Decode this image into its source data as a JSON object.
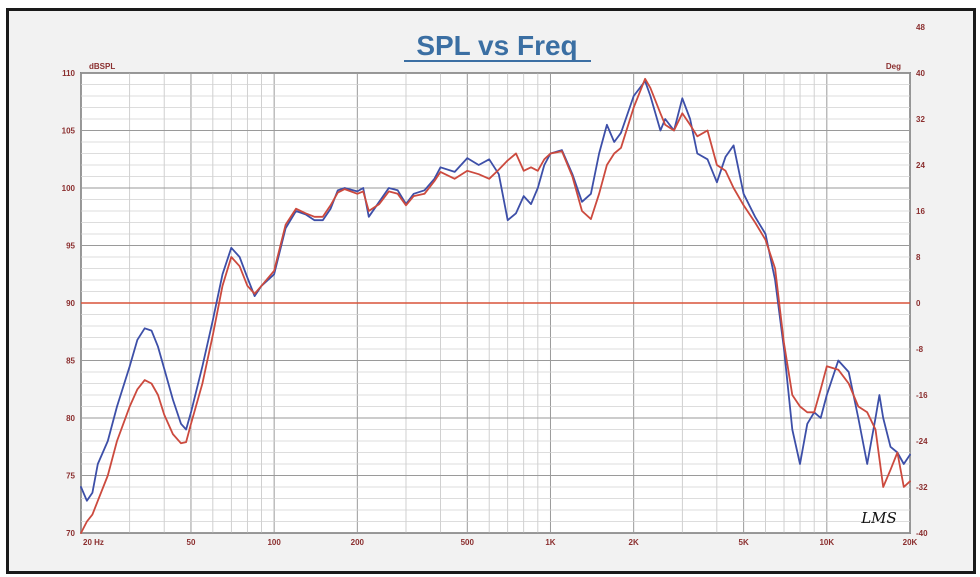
{
  "chart_data": {
    "type": "line",
    "title": "SPL vs Freq",
    "ylabel_left": "dBSPL",
    "ylabel_right": "Deg",
    "xscale": "log",
    "xlim": [
      20,
      20000
    ],
    "ylim": [
      70,
      110
    ],
    "y2lim": [
      -40,
      40
    ],
    "x_tick_labels": [
      {
        "value": 20,
        "label": "20 Hz"
      },
      {
        "value": 50,
        "label": "50"
      },
      {
        "value": 100,
        "label": "100"
      },
      {
        "value": 200,
        "label": "200"
      },
      {
        "value": 500,
        "label": "500"
      },
      {
        "value": 1000,
        "label": "1K"
      },
      {
        "value": 2000,
        "label": "2K"
      },
      {
        "value": 5000,
        "label": "5K"
      },
      {
        "value": 10000,
        "label": "10K"
      },
      {
        "value": 20000,
        "label": "20K"
      }
    ],
    "y_ticks": [
      70,
      75,
      80,
      85,
      90,
      95,
      100,
      105,
      110
    ],
    "y2_ticks": [
      -40,
      -32,
      -24,
      -16,
      -8,
      0,
      8,
      16,
      24,
      32,
      40,
      48
    ],
    "grid": true,
    "reference_line": {
      "y": 90,
      "color": "#d9543a"
    },
    "series": [
      {
        "color": "#3d4fa8",
        "points": [
          [
            20,
            74
          ],
          [
            21,
            72.8
          ],
          [
            22,
            73.5
          ],
          [
            23,
            76
          ],
          [
            25,
            78
          ],
          [
            27,
            81
          ],
          [
            30,
            84.5
          ],
          [
            32,
            86.8
          ],
          [
            34,
            87.8
          ],
          [
            36,
            87.6
          ],
          [
            38,
            86.2
          ],
          [
            40,
            84.3
          ],
          [
            43,
            81.6
          ],
          [
            46,
            79.5
          ],
          [
            48,
            79
          ],
          [
            50,
            80.5
          ],
          [
            55,
            84.5
          ],
          [
            60,
            88.5
          ],
          [
            65,
            92.5
          ],
          [
            70,
            94.8
          ],
          [
            75,
            94
          ],
          [
            80,
            92.2
          ],
          [
            85,
            90.6
          ],
          [
            90,
            91.5
          ],
          [
            100,
            92.5
          ],
          [
            110,
            96.5
          ],
          [
            120,
            98
          ],
          [
            130,
            97.7
          ],
          [
            140,
            97.2
          ],
          [
            150,
            97.2
          ],
          [
            160,
            98.2
          ],
          [
            170,
            99.8
          ],
          [
            180,
            100
          ],
          [
            200,
            99.7
          ],
          [
            210,
            100
          ],
          [
            220,
            97.5
          ],
          [
            240,
            98.8
          ],
          [
            260,
            100
          ],
          [
            280,
            99.8
          ],
          [
            300,
            98.6
          ],
          [
            320,
            99.5
          ],
          [
            350,
            99.8
          ],
          [
            380,
            100.8
          ],
          [
            400,
            101.8
          ],
          [
            450,
            101.4
          ],
          [
            500,
            102.6
          ],
          [
            550,
            102
          ],
          [
            600,
            102.5
          ],
          [
            650,
            101.2
          ],
          [
            700,
            97.2
          ],
          [
            750,
            97.8
          ],
          [
            800,
            99.3
          ],
          [
            850,
            98.6
          ],
          [
            900,
            100
          ],
          [
            950,
            102
          ],
          [
            1000,
            103
          ],
          [
            1100,
            103.3
          ],
          [
            1200,
            101.2
          ],
          [
            1300,
            98.8
          ],
          [
            1400,
            99.5
          ],
          [
            1500,
            103
          ],
          [
            1600,
            105.5
          ],
          [
            1700,
            104
          ],
          [
            1800,
            104.8
          ],
          [
            2000,
            108
          ],
          [
            2200,
            109.3
          ],
          [
            2300,
            108
          ],
          [
            2500,
            105
          ],
          [
            2600,
            106
          ],
          [
            2800,
            105
          ],
          [
            3000,
            107.8
          ],
          [
            3200,
            106
          ],
          [
            3400,
            103
          ],
          [
            3700,
            102.5
          ],
          [
            4000,
            100.5
          ],
          [
            4300,
            102.7
          ],
          [
            4600,
            103.7
          ],
          [
            5000,
            99.5
          ],
          [
            5500,
            97.5
          ],
          [
            6000,
            96
          ],
          [
            6500,
            92
          ],
          [
            7000,
            86
          ],
          [
            7500,
            79
          ],
          [
            8000,
            76
          ],
          [
            8500,
            79.5
          ],
          [
            9000,
            80.5
          ],
          [
            9500,
            80
          ],
          [
            10000,
            82
          ],
          [
            11000,
            85
          ],
          [
            12000,
            84
          ],
          [
            13000,
            80
          ],
          [
            14000,
            76
          ],
          [
            15000,
            80
          ],
          [
            15500,
            82
          ],
          [
            16000,
            80
          ],
          [
            17000,
            77.5
          ],
          [
            18000,
            77
          ],
          [
            19000,
            76
          ],
          [
            20000,
            76.8
          ]
        ]
      },
      {
        "color": "#cc4a3e",
        "points": [
          [
            20,
            70
          ],
          [
            21,
            71
          ],
          [
            22,
            71.6
          ],
          [
            23,
            72.8
          ],
          [
            25,
            75
          ],
          [
            27,
            78
          ],
          [
            30,
            81
          ],
          [
            32,
            82.5
          ],
          [
            34,
            83.3
          ],
          [
            36,
            83
          ],
          [
            38,
            82
          ],
          [
            40,
            80.3
          ],
          [
            43,
            78.6
          ],
          [
            46,
            77.8
          ],
          [
            48,
            77.9
          ],
          [
            50,
            79.5
          ],
          [
            55,
            83
          ],
          [
            60,
            87.2
          ],
          [
            65,
            91.5
          ],
          [
            70,
            94
          ],
          [
            75,
            93.2
          ],
          [
            80,
            91.5
          ],
          [
            85,
            90.8
          ],
          [
            90,
            91.5
          ],
          [
            100,
            92.8
          ],
          [
            110,
            96.8
          ],
          [
            120,
            98.2
          ],
          [
            130,
            97.8
          ],
          [
            140,
            97.5
          ],
          [
            150,
            97.5
          ],
          [
            160,
            98.5
          ],
          [
            170,
            99.6
          ],
          [
            180,
            99.9
          ],
          [
            200,
            99.5
          ],
          [
            210,
            99.7
          ],
          [
            220,
            98
          ],
          [
            240,
            98.6
          ],
          [
            260,
            99.7
          ],
          [
            280,
            99.5
          ],
          [
            300,
            98.5
          ],
          [
            320,
            99.3
          ],
          [
            350,
            99.5
          ],
          [
            380,
            100.6
          ],
          [
            400,
            101.4
          ],
          [
            450,
            100.8
          ],
          [
            500,
            101.5
          ],
          [
            550,
            101.2
          ],
          [
            600,
            100.8
          ],
          [
            650,
            101.6
          ],
          [
            700,
            102.4
          ],
          [
            750,
            103
          ],
          [
            800,
            101.5
          ],
          [
            850,
            101.8
          ],
          [
            900,
            101.5
          ],
          [
            950,
            102.5
          ],
          [
            1000,
            103
          ],
          [
            1100,
            103.2
          ],
          [
            1200,
            101
          ],
          [
            1300,
            98
          ],
          [
            1400,
            97.3
          ],
          [
            1500,
            99.5
          ],
          [
            1600,
            102
          ],
          [
            1700,
            103
          ],
          [
            1800,
            103.5
          ],
          [
            2000,
            107
          ],
          [
            2200,
            109.5
          ],
          [
            2300,
            108.7
          ],
          [
            2500,
            106.5
          ],
          [
            2600,
            105.5
          ],
          [
            2800,
            105
          ],
          [
            3000,
            106.5
          ],
          [
            3200,
            105.5
          ],
          [
            3400,
            104.5
          ],
          [
            3700,
            105
          ],
          [
            4000,
            102
          ],
          [
            4300,
            101.5
          ],
          [
            4600,
            100
          ],
          [
            5000,
            98.5
          ],
          [
            5500,
            97
          ],
          [
            6000,
            95.5
          ],
          [
            6500,
            93
          ],
          [
            7000,
            86.5
          ],
          [
            7500,
            82
          ],
          [
            8000,
            81
          ],
          [
            8500,
            80.5
          ],
          [
            9000,
            80.5
          ],
          [
            9500,
            82.5
          ],
          [
            10000,
            84.5
          ],
          [
            11000,
            84.2
          ],
          [
            12000,
            83
          ],
          [
            13000,
            81
          ],
          [
            14000,
            80.5
          ],
          [
            15000,
            79
          ],
          [
            16000,
            74
          ],
          [
            17000,
            75.5
          ],
          [
            18000,
            77
          ],
          [
            19000,
            74
          ],
          [
            20000,
            74.5
          ]
        ]
      }
    ]
  },
  "watermark": "LMS"
}
